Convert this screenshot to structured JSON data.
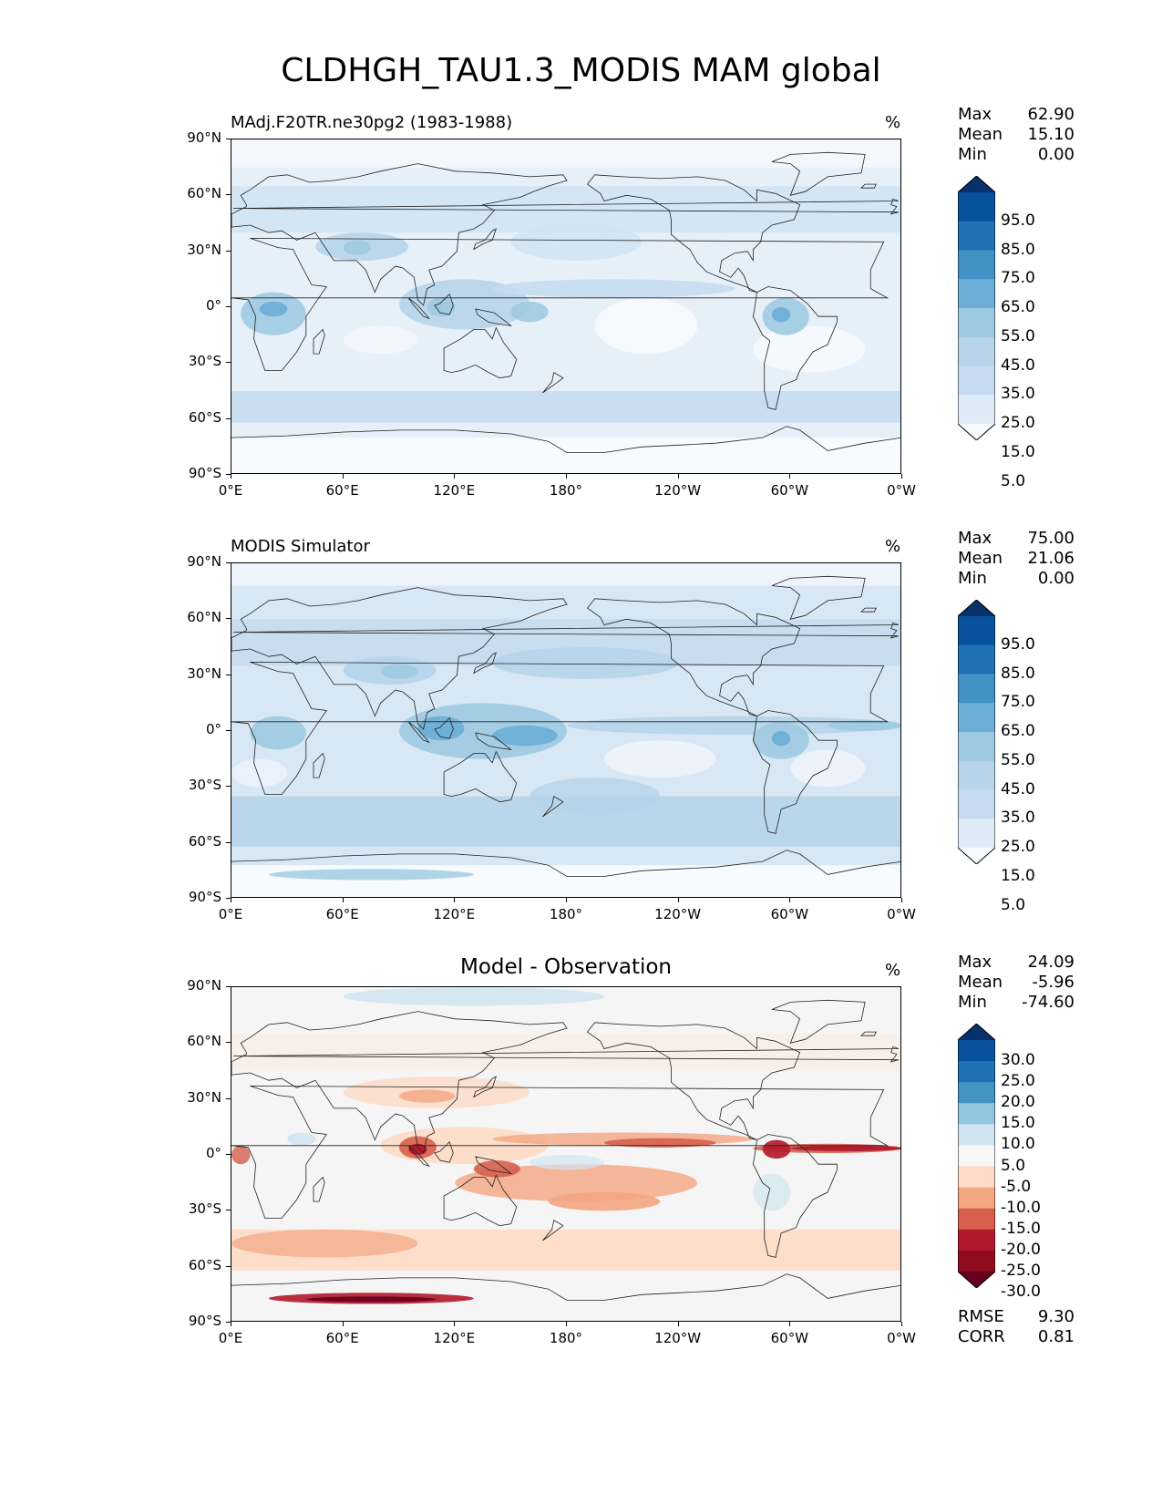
{
  "title": "CLDHGH_TAU1.3_MODIS MAM global",
  "axes": {
    "lat_labels": [
      "90°N",
      "60°N",
      "30°N",
      "0°",
      "30°S",
      "60°S",
      "90°S"
    ],
    "lon_labels": [
      "0°E",
      "60°E",
      "120°E",
      "180°",
      "120°W",
      "60°W",
      "0°W"
    ]
  },
  "panels": [
    {
      "title": "MAdj.F20TR.ne30pg2 (1983-1988)",
      "units": "%",
      "stats": [
        {
          "label": "Max",
          "value": "62.90"
        },
        {
          "label": "Mean",
          "value": "15.10"
        },
        {
          "label": "Min",
          "value": "0.00"
        }
      ],
      "colorbar": {
        "levels": [
          "95.0",
          "85.0",
          "75.0",
          "65.0",
          "55.0",
          "45.0",
          "35.0",
          "25.0",
          "15.0",
          "5.0"
        ],
        "colors": [
          "#08306b",
          "#08519c",
          "#2171b5",
          "#4292c6",
          "#6baed6",
          "#9ecae1",
          "#b7d4ea",
          "#c6dbef",
          "#deebf7",
          "#f7fbff"
        ]
      }
    },
    {
      "title": "MODIS Simulator",
      "units": "%",
      "stats": [
        {
          "label": "Max",
          "value": "75.00"
        },
        {
          "label": "Mean",
          "value": "21.06"
        },
        {
          "label": "Min",
          "value": "0.00"
        }
      ],
      "colorbar": {
        "levels": [
          "95.0",
          "85.0",
          "75.0",
          "65.0",
          "55.0",
          "45.0",
          "35.0",
          "25.0",
          "15.0",
          "5.0"
        ],
        "colors": [
          "#08306b",
          "#08519c",
          "#2171b5",
          "#4292c6",
          "#6baed6",
          "#9ecae1",
          "#b7d4ea",
          "#c6dbef",
          "#deebf7",
          "#f7fbff"
        ]
      }
    },
    {
      "title": "Model - Observation",
      "units": "%",
      "stats": [
        {
          "label": "Max",
          "value": "24.09"
        },
        {
          "label": "Mean",
          "value": "-5.96"
        },
        {
          "label": "Min",
          "value": "-74.60"
        }
      ],
      "colorbar": {
        "levels": [
          "30.0",
          "25.0",
          "20.0",
          "15.0",
          "10.0",
          "5.0",
          "-5.0",
          "-10.0",
          "-15.0",
          "-20.0",
          "-25.0",
          "-30.0"
        ],
        "colors": [
          "#08306b",
          "#08519c",
          "#2171b5",
          "#4393c3",
          "#92c5de",
          "#d1e5f0",
          "#f7f7f7",
          "#fddbc7",
          "#f4a582",
          "#d6604d",
          "#b2182b",
          "#8f0d1f",
          "#67001f"
        ]
      },
      "metrics": [
        {
          "label": "RMSE",
          "value": "9.30"
        },
        {
          "label": "CORR",
          "value": "0.81"
        }
      ]
    }
  ],
  "chart_data": [
    {
      "type": "heatmap",
      "title": "MAdj.F20TR.ne30pg2 (1983-1988)",
      "variable": "CLDHGH_TAU1.3_MODIS",
      "season": "MAM",
      "units": "%",
      "xlim": [
        0,
        360
      ],
      "ylim": [
        -90,
        90
      ],
      "stats": {
        "max": 62.9,
        "mean": 15.1,
        "min": 0.0
      },
      "contour_levels": [
        5,
        15,
        25,
        35,
        45,
        55,
        65,
        75,
        85,
        95
      ],
      "colormap": "Blues"
    },
    {
      "type": "heatmap",
      "title": "MODIS Simulator",
      "variable": "CLDHGH_TAU1.3_MODIS",
      "season": "MAM",
      "units": "%",
      "xlim": [
        0,
        360
      ],
      "ylim": [
        -90,
        90
      ],
      "stats": {
        "max": 75.0,
        "mean": 21.06,
        "min": 0.0
      },
      "contour_levels": [
        5,
        15,
        25,
        35,
        45,
        55,
        65,
        75,
        85,
        95
      ],
      "colormap": "Blues"
    },
    {
      "type": "heatmap",
      "title": "Model - Observation",
      "variable": "CLDHGH_TAU1.3_MODIS",
      "season": "MAM",
      "units": "%",
      "xlim": [
        0,
        360
      ],
      "ylim": [
        -90,
        90
      ],
      "stats": {
        "max": 24.09,
        "mean": -5.96,
        "min": -74.6,
        "rmse": 9.3,
        "corr": 0.81
      },
      "contour_levels": [
        -30,
        -25,
        -20,
        -15,
        -10,
        -5,
        5,
        10,
        15,
        20,
        25,
        30
      ],
      "colormap": "RdBu"
    }
  ]
}
